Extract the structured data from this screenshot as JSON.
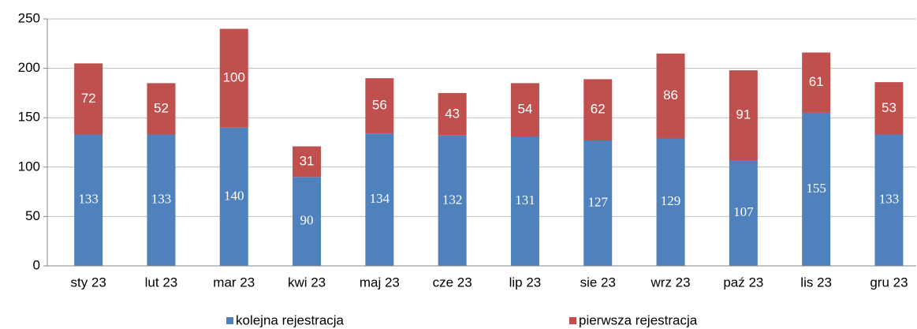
{
  "chart_data": {
    "type": "stacked_bar",
    "categories": [
      "sty 23",
      "lut 23",
      "mar 23",
      "kwi 23",
      "maj 23",
      "cze 23",
      "lip 23",
      "sie 23",
      "wrz 23",
      "paź 23",
      "lis 23",
      "gru 23"
    ],
    "series": [
      {
        "name": "kolejna rejestracja",
        "color": "#4f81bd",
        "values": [
          133,
          133,
          140,
          90,
          134,
          132,
          131,
          127,
          129,
          107,
          155,
          133
        ]
      },
      {
        "name": "pierwsza rejestracja",
        "color": "#c0504d",
        "values": [
          72,
          52,
          100,
          31,
          56,
          43,
          54,
          62,
          86,
          91,
          61,
          53
        ]
      }
    ],
    "ylim": [
      0,
      250
    ],
    "yticks": [
      0,
      50,
      100,
      150,
      200,
      250
    ],
    "grid": true,
    "legend": "bottom"
  }
}
